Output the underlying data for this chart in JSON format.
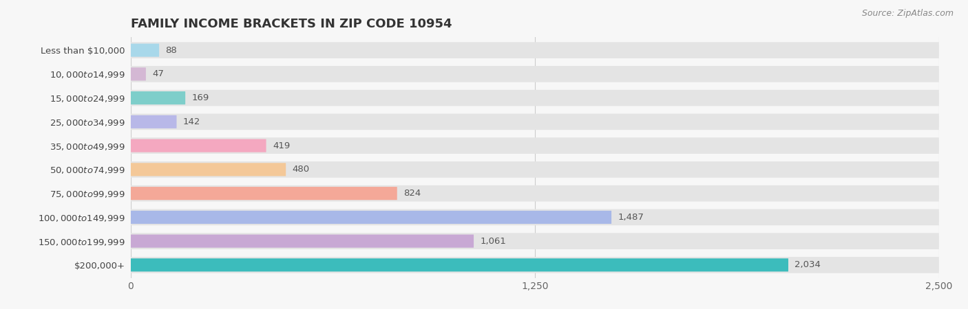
{
  "title": "FAMILY INCOME BRACKETS IN ZIP CODE 10954",
  "source": "Source: ZipAtlas.com",
  "categories": [
    "Less than $10,000",
    "$10,000 to $14,999",
    "$15,000 to $24,999",
    "$25,000 to $34,999",
    "$35,000 to $49,999",
    "$50,000 to $74,999",
    "$75,000 to $99,999",
    "$100,000 to $149,999",
    "$150,000 to $199,999",
    "$200,000+"
  ],
  "values": [
    88,
    47,
    169,
    142,
    419,
    480,
    824,
    1487,
    1061,
    2034
  ],
  "bar_colors": [
    "#a8d8ea",
    "#d4b8d4",
    "#7ececa",
    "#b8b8e8",
    "#f4a8c0",
    "#f4c898",
    "#f4a898",
    "#a8b8e8",
    "#c8a8d4",
    "#3cbcbc"
  ],
  "background_color": "#f7f7f7",
  "bar_bg_color": "#e4e4e4",
  "xlim": [
    0,
    2500
  ],
  "xticks": [
    0,
    1250,
    2500
  ],
  "title_fontsize": 13,
  "label_fontsize": 9.5,
  "value_fontsize": 9.5,
  "source_fontsize": 9
}
